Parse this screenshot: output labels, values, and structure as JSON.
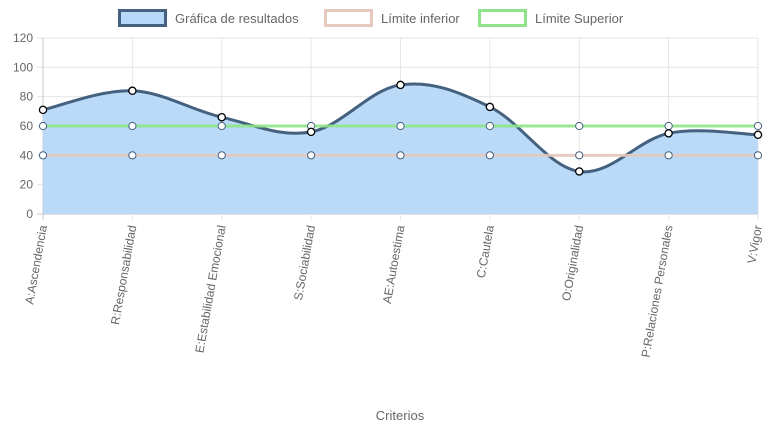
{
  "chart_data": {
    "type": "line",
    "title": "",
    "xlabel": "Criterios",
    "ylabel": "",
    "ylim": [
      0,
      120
    ],
    "yticks": [
      0,
      20,
      40,
      60,
      80,
      100,
      120
    ],
    "grid": true,
    "legend_position": "top",
    "categories": [
      "A:Ascendencia",
      "R:Responsabilidad",
      "E:Estabilidad Emocional",
      "S:Sociabilidad",
      "AE:Autoestima",
      "C:Cautela",
      "O:Originalidad",
      "P:Relaciones Personales",
      "V:Vigor"
    ],
    "series": [
      {
        "name": "Gráfica de resultados",
        "values": [
          71,
          84,
          66,
          56,
          88,
          73,
          29,
          55,
          54
        ],
        "line_color": "#44617f",
        "fill_color": "#b7d8f8",
        "smooth": true,
        "filled": true
      },
      {
        "name": "Límite inferior",
        "values": [
          40,
          40,
          40,
          40,
          40,
          40,
          40,
          40,
          40
        ],
        "line_color": "#e6c8bd",
        "smooth": false,
        "filled": false
      },
      {
        "name": "Límite Superior",
        "values": [
          60,
          60,
          60,
          60,
          60,
          60,
          60,
          60,
          60
        ],
        "line_color": "#8fe48a",
        "smooth": false,
        "filled": false
      }
    ]
  }
}
